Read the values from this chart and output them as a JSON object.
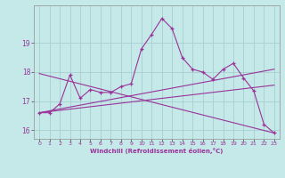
{
  "xlabel": "Windchill (Refroidissement éolien,°C)",
  "background_color": "#c5e8e8",
  "grid_color": "#a8d0d0",
  "line_color": "#993399",
  "xlim": [
    -0.5,
    23.5
  ],
  "ylim": [
    15.7,
    20.3
  ],
  "yticks": [
    16,
    17,
    18,
    19
  ],
  "xticks": [
    0,
    1,
    2,
    3,
    4,
    5,
    6,
    7,
    8,
    9,
    10,
    11,
    12,
    13,
    14,
    15,
    16,
    17,
    18,
    19,
    20,
    21,
    22,
    23
  ],
  "series1_x": [
    0,
    1,
    2,
    3,
    4,
    5,
    6,
    7,
    8,
    9,
    10,
    11,
    12,
    13,
    14,
    15,
    16,
    17,
    18,
    19,
    20,
    21,
    22,
    23
  ],
  "series1_y": [
    16.6,
    16.6,
    16.9,
    17.9,
    17.1,
    17.4,
    17.3,
    17.3,
    17.5,
    17.6,
    18.8,
    19.3,
    19.85,
    19.5,
    18.5,
    18.1,
    18.0,
    17.75,
    18.1,
    18.3,
    17.8,
    17.35,
    16.2,
    15.9
  ],
  "trend1_x": [
    0,
    23
  ],
  "trend1_y": [
    16.6,
    17.55
  ],
  "trend2_x": [
    0,
    23
  ],
  "trend2_y": [
    16.6,
    18.1
  ],
  "trend3_x": [
    0,
    23
  ],
  "trend3_y": [
    17.95,
    15.9
  ]
}
